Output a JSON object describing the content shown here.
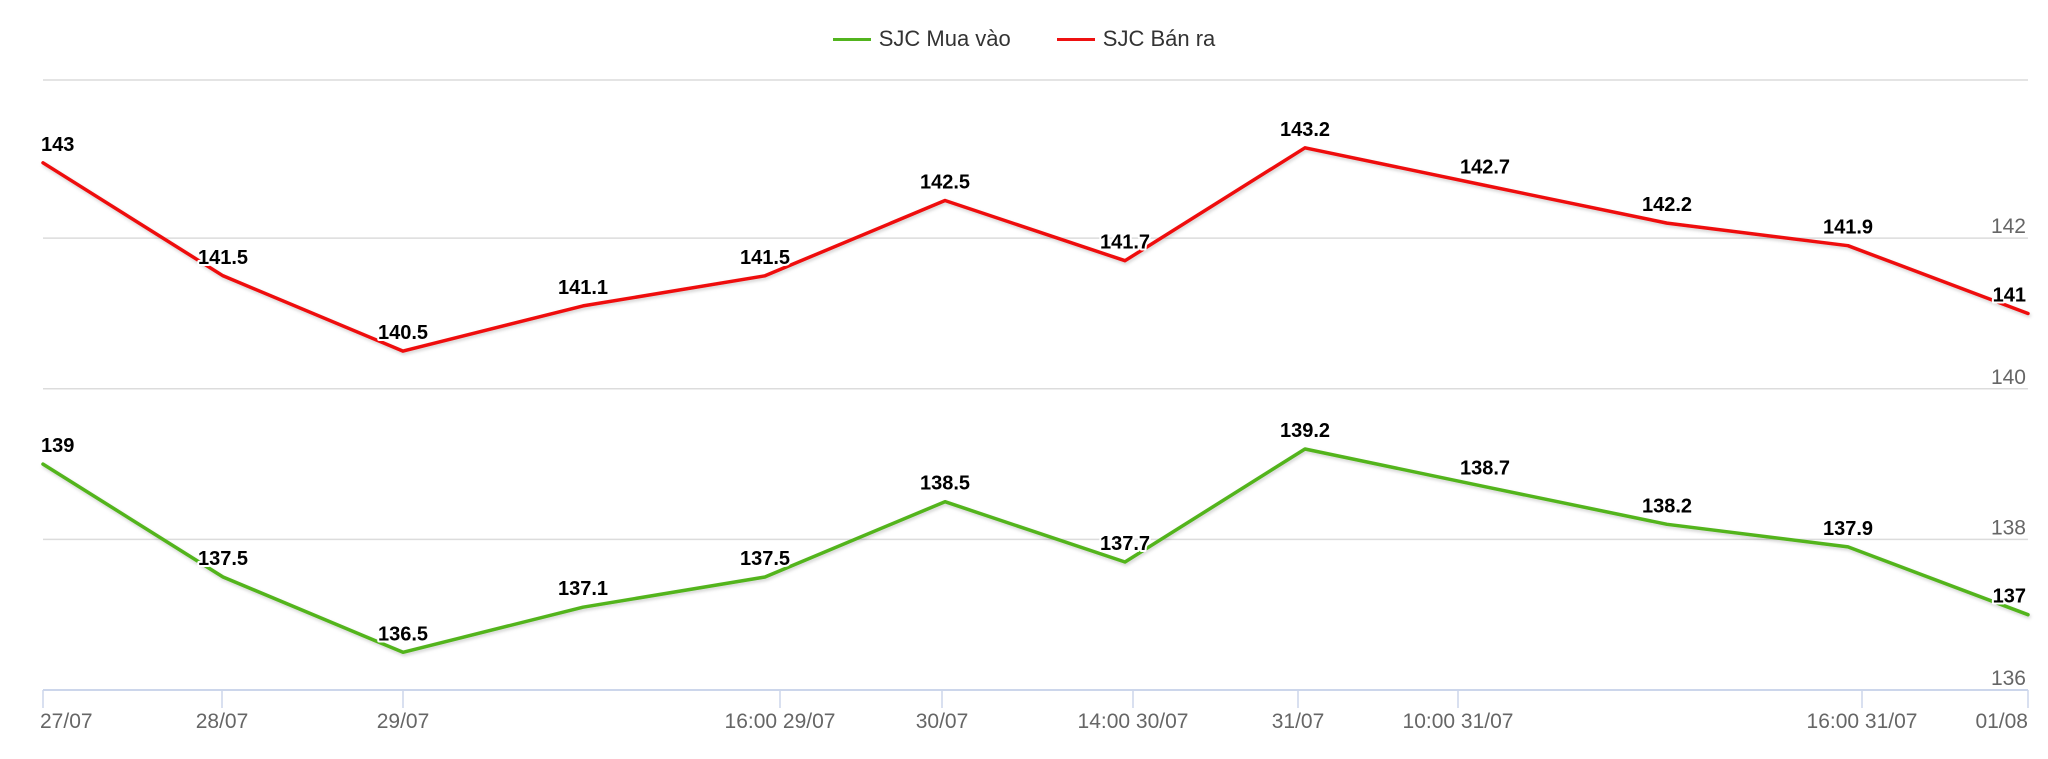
{
  "legend": {
    "items": [
      {
        "label": "SJC Mua vào",
        "color": "#52b41e"
      },
      {
        "label": "SJC Bán ra",
        "color": "#ee1111"
      }
    ]
  },
  "chart_data": {
    "type": "line",
    "title": "",
    "xlabel": "",
    "ylabel": "",
    "x": [
      "27/07",
      "28/07",
      "29/07",
      "",
      "16:00 29/07",
      "30/07",
      "14:00 30/07",
      "31/07",
      "10:00 31/07",
      "",
      "16:00 31/07",
      "01/08"
    ],
    "x_tick_labels": [
      "27/07",
      "28/07",
      "29/07",
      "16:00 29/07",
      "30/07",
      "14:00 30/07",
      "31/07",
      "10:00 31/07",
      "16:00 31/07",
      "01/08"
    ],
    "y_ticks": [
      136,
      138,
      140,
      142
    ],
    "ylim": [
      136,
      144.1
    ],
    "grid": true,
    "legend_position": "top-center",
    "series": [
      {
        "name": "SJC Bán ra",
        "color": "#ee1111",
        "values": [
          143,
          141.5,
          140.5,
          141.1,
          141.5,
          142.5,
          141.7,
          143.2,
          142.7,
          142.2,
          141.9,
          141
        ]
      },
      {
        "name": "SJC Mua vào",
        "color": "#52b41e",
        "values": [
          139,
          137.5,
          136.5,
          137.1,
          137.5,
          138.5,
          137.7,
          139.2,
          138.7,
          138.2,
          137.9,
          137
        ]
      }
    ]
  }
}
